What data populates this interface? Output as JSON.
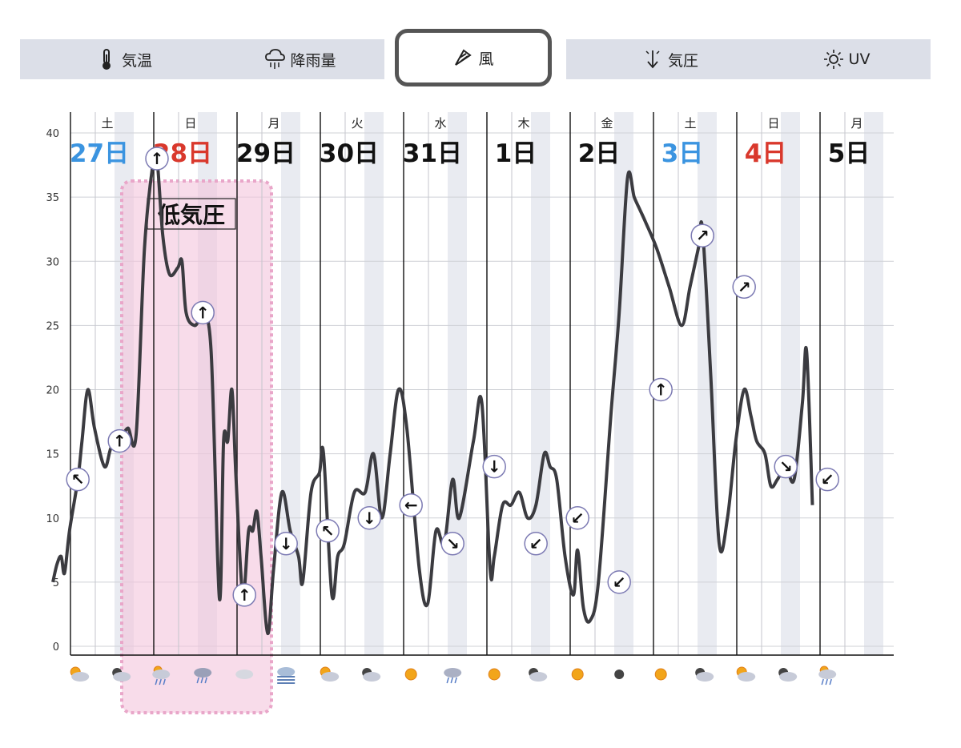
{
  "tabs": [
    {
      "label": "気温",
      "icon": "thermometer-icon"
    },
    {
      "label": "降雨量",
      "icon": "rain-cloud-icon"
    },
    {
      "label": "風",
      "icon": "windsock-icon",
      "active": true
    },
    {
      "label": "気圧",
      "icon": "pressure-arrow-icon"
    },
    {
      "label": "UV",
      "icon": "sun-icon"
    }
  ],
  "colors": {
    "saturday": "#3b94e0",
    "sunday": "#d9382c",
    "weekday": "#111111",
    "line": "#3b3b40",
    "band": "#e9ebf1",
    "highlight": "#f3c4dc",
    "highlight_border": "#e9a6c9"
  },
  "annotation": {
    "label": "低気圧"
  },
  "chart_data": {
    "type": "line",
    "ylim": [
      0,
      40
    ],
    "yticks": [
      0,
      5,
      10,
      15,
      20,
      25,
      30,
      35,
      40
    ],
    "days": [
      {
        "weekday": "土",
        "date": "27日",
        "kind": "saturday"
      },
      {
        "weekday": "日",
        "date": "28日",
        "kind": "sunday"
      },
      {
        "weekday": "月",
        "date": "29日",
        "kind": "weekday"
      },
      {
        "weekday": "火",
        "date": "30日",
        "kind": "weekday"
      },
      {
        "weekday": "水",
        "date": "31日",
        "kind": "weekday"
      },
      {
        "weekday": "木",
        "date": "1日",
        "kind": "weekday"
      },
      {
        "weekday": "金",
        "date": "2日",
        "kind": "weekday"
      },
      {
        "weekday": "土",
        "date": "3日",
        "kind": "saturday"
      },
      {
        "weekday": "日",
        "date": "4日",
        "kind": "sunday"
      },
      {
        "weekday": "月",
        "date": "5日",
        "kind": "weekday"
      }
    ],
    "series": [
      {
        "values": [
          [
            0,
            5
          ],
          [
            0.05,
            6.4
          ],
          [
            0.1,
            7
          ],
          [
            0.14,
            5.7
          ],
          [
            0.2,
            9
          ],
          [
            0.3,
            13
          ],
          [
            0.35,
            16
          ],
          [
            0.42,
            20
          ],
          [
            0.5,
            17
          ],
          [
            0.62,
            14
          ],
          [
            0.7,
            15.5
          ],
          [
            0.8,
            16
          ],
          [
            0.9,
            17
          ],
          [
            1.0,
            16.5
          ],
          [
            1.1,
            31
          ],
          [
            1.2,
            37.5
          ],
          [
            1.25,
            38
          ],
          [
            1.32,
            32
          ],
          [
            1.4,
            29
          ],
          [
            1.5,
            29.5
          ],
          [
            1.55,
            30
          ],
          [
            1.6,
            26
          ],
          [
            1.7,
            25
          ],
          [
            1.8,
            25.5
          ],
          [
            1.9,
            23
          ],
          [
            2.0,
            3.7
          ],
          [
            2.05,
            16
          ],
          [
            2.1,
            16
          ],
          [
            2.15,
            20
          ],
          [
            2.2,
            13
          ],
          [
            2.28,
            4
          ],
          [
            2.35,
            9
          ],
          [
            2.4,
            9
          ],
          [
            2.45,
            10.5
          ],
          [
            2.5,
            7
          ],
          [
            2.58,
            1
          ],
          [
            2.65,
            6
          ],
          [
            2.75,
            12
          ],
          [
            2.85,
            9
          ],
          [
            2.95,
            7
          ],
          [
            3.0,
            5
          ],
          [
            3.1,
            12
          ],
          [
            3.2,
            13.5
          ],
          [
            3.25,
            15
          ],
          [
            3.35,
            4
          ],
          [
            3.42,
            7
          ],
          [
            3.5,
            8
          ],
          [
            3.62,
            12
          ],
          [
            3.75,
            12
          ],
          [
            3.85,
            15
          ],
          [
            3.95,
            10
          ],
          [
            4.05,
            15
          ],
          [
            4.15,
            20
          ],
          [
            4.25,
            17
          ],
          [
            4.4,
            6
          ],
          [
            4.5,
            3.3
          ],
          [
            4.6,
            9
          ],
          [
            4.7,
            8
          ],
          [
            4.8,
            13
          ],
          [
            4.88,
            10
          ],
          [
            5.05,
            16
          ],
          [
            5.15,
            19
          ],
          [
            5.25,
            6
          ],
          [
            5.3,
            7
          ],
          [
            5.4,
            11
          ],
          [
            5.5,
            11
          ],
          [
            5.6,
            12
          ],
          [
            5.7,
            10
          ],
          [
            5.8,
            11
          ],
          [
            5.9,
            15
          ],
          [
            5.97,
            14
          ],
          [
            6.05,
            13
          ],
          [
            6.15,
            7
          ],
          [
            6.25,
            4
          ],
          [
            6.3,
            7.5
          ],
          [
            6.37,
            3
          ],
          [
            6.45,
            2
          ],
          [
            6.55,
            5
          ],
          [
            6.7,
            18
          ],
          [
            6.8,
            26
          ],
          [
            6.9,
            36.5
          ],
          [
            6.98,
            35
          ],
          [
            7.05,
            34
          ],
          [
            7.12,
            33
          ],
          [
            7.25,
            31
          ],
          [
            7.4,
            28
          ],
          [
            7.55,
            25
          ],
          [
            7.65,
            28
          ],
          [
            7.75,
            31
          ],
          [
            7.8,
            32.5
          ],
          [
            7.9,
            21
          ],
          [
            8.0,
            8
          ],
          [
            8.1,
            10
          ],
          [
            8.2,
            16
          ],
          [
            8.3,
            20
          ],
          [
            8.38,
            18
          ],
          [
            8.45,
            16
          ],
          [
            8.55,
            15
          ],
          [
            8.62,
            12.5
          ],
          [
            8.7,
            13
          ],
          [
            8.8,
            14
          ],
          [
            8.9,
            13
          ],
          [
            9.0,
            19
          ],
          [
            9.05,
            23
          ],
          [
            9.12,
            11
          ]
        ]
      }
    ],
    "arrows": [
      {
        "x": 0.3,
        "y": 13,
        "dir": "↖"
      },
      {
        "x": 0.8,
        "y": 16,
        "dir": "↑"
      },
      {
        "x": 1.25,
        "y": 38,
        "dir": "↑"
      },
      {
        "x": 1.8,
        "y": 26,
        "dir": "↑"
      },
      {
        "x": 2.3,
        "y": 4,
        "dir": "↑"
      },
      {
        "x": 2.8,
        "y": 8,
        "dir": "↓"
      },
      {
        "x": 3.3,
        "y": 9,
        "dir": "↖"
      },
      {
        "x": 3.8,
        "y": 10,
        "dir": "↓"
      },
      {
        "x": 4.3,
        "y": 11,
        "dir": "←"
      },
      {
        "x": 4.8,
        "y": 8,
        "dir": "↘"
      },
      {
        "x": 5.3,
        "y": 14,
        "dir": "↓"
      },
      {
        "x": 5.8,
        "y": 8,
        "dir": "↙"
      },
      {
        "x": 6.3,
        "y": 10,
        "dir": "↙"
      },
      {
        "x": 6.8,
        "y": 5,
        "dir": "↙"
      },
      {
        "x": 7.3,
        "y": 20,
        "dir": "↑"
      },
      {
        "x": 7.8,
        "y": 32,
        "dir": "↗"
      },
      {
        "x": 8.3,
        "y": 28,
        "dir": "↗"
      },
      {
        "x": 8.8,
        "y": 14,
        "dir": "↘"
      },
      {
        "x": 9.3,
        "y": 13,
        "dir": "↙"
      }
    ],
    "weather_icons": [
      {
        "x": 0.3,
        "type": "sun-cloud"
      },
      {
        "x": 0.8,
        "type": "moon-cloud"
      },
      {
        "x": 1.3,
        "type": "sun-rain"
      },
      {
        "x": 1.8,
        "type": "storm"
      },
      {
        "x": 2.3,
        "type": "cloud"
      },
      {
        "x": 2.8,
        "type": "fog"
      },
      {
        "x": 3.3,
        "type": "sun-cloud"
      },
      {
        "x": 3.8,
        "type": "moon-cloud"
      },
      {
        "x": 4.3,
        "type": "sun"
      },
      {
        "x": 4.8,
        "type": "rain"
      },
      {
        "x": 5.3,
        "type": "sun"
      },
      {
        "x": 5.8,
        "type": "moon-cloud"
      },
      {
        "x": 6.3,
        "type": "sun"
      },
      {
        "x": 6.8,
        "type": "moon"
      },
      {
        "x": 7.3,
        "type": "sun"
      },
      {
        "x": 7.8,
        "type": "moon-cloud"
      },
      {
        "x": 8.3,
        "type": "sun-cloud"
      },
      {
        "x": 8.8,
        "type": "moon-cloud"
      },
      {
        "x": 9.3,
        "type": "sun-rain"
      }
    ]
  }
}
